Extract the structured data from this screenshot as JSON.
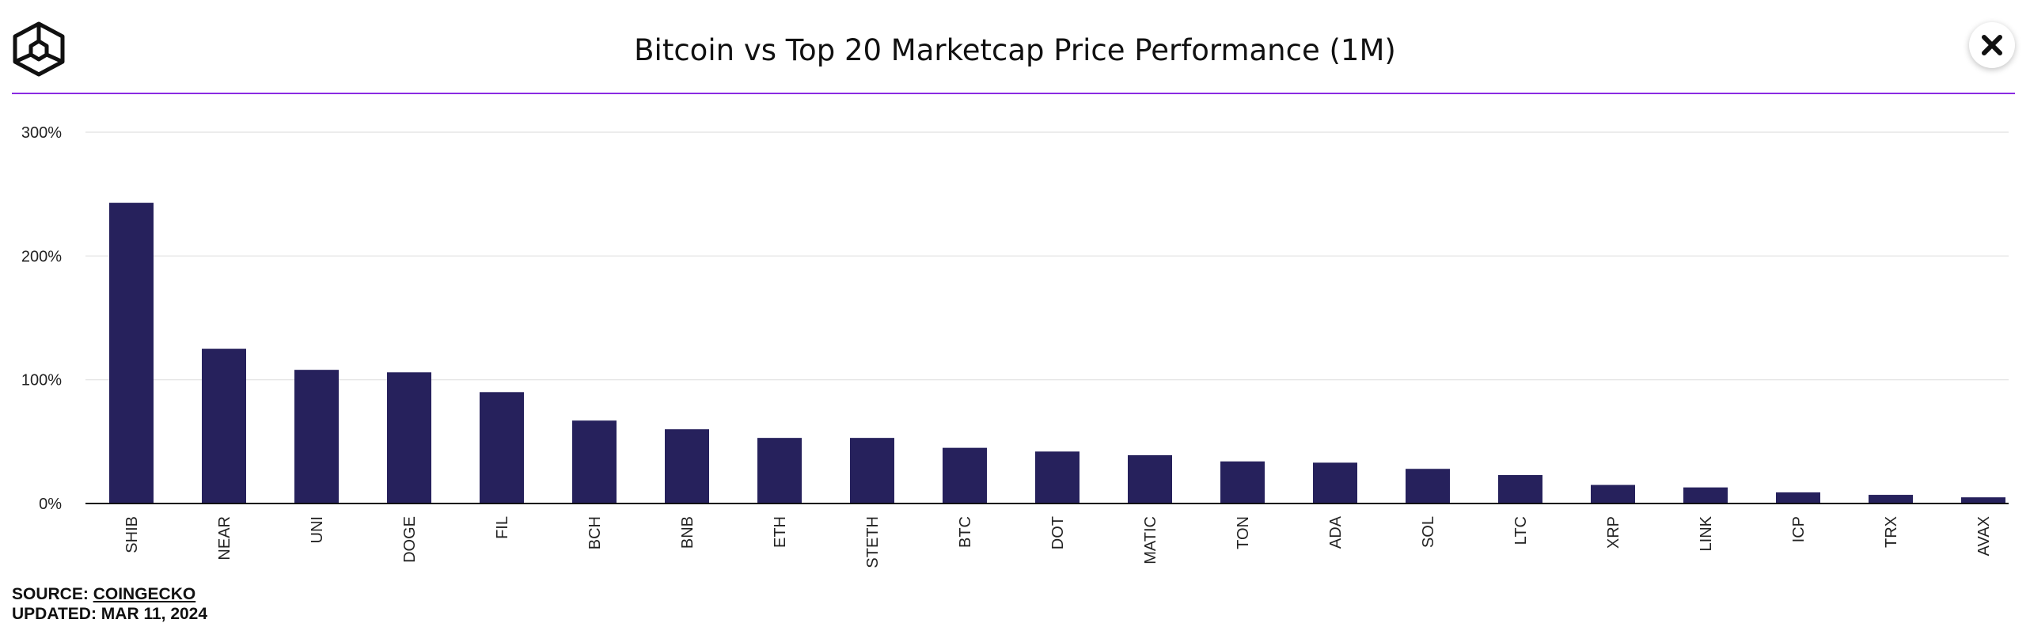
{
  "header": {
    "title": "Bitcoin vs Top 20 Marketcap Price Performance (1M)",
    "logo_icon": "cube-logo-icon",
    "close_icon": "close-icon"
  },
  "footer": {
    "source_label": "SOURCE:",
    "source_link": "COINGECKO",
    "updated_label": "UPDATED:",
    "updated_date": "MAR 11, 2024"
  },
  "colors": {
    "bar": "#26215c",
    "accent_rule": "#8a2be2",
    "grid": "#e6e6e6",
    "axis": "#111111"
  },
  "chart_data": {
    "type": "bar",
    "categories": [
      "SHIB",
      "NEAR",
      "UNI",
      "DOGE",
      "FIL",
      "BCH",
      "BNB",
      "ETH",
      "STETH",
      "BTC",
      "DOT",
      "MATIC",
      "TON",
      "ADA",
      "SOL",
      "LTC",
      "XRP",
      "LINK",
      "ICP",
      "TRX",
      "AVAX"
    ],
    "values": [
      243,
      125,
      108,
      106,
      90,
      67,
      60,
      53,
      53,
      45,
      42,
      39,
      34,
      33,
      28,
      23,
      15,
      13,
      9,
      7,
      5
    ],
    "yticks": [
      0,
      100,
      200,
      300
    ],
    "ytick_labels": [
      "0%",
      "100%",
      "200%",
      "300%"
    ],
    "ylim": [
      0,
      300
    ],
    "grid": true,
    "title": "Bitcoin vs Top 20 Marketcap Price Performance (1M)",
    "xlabel": "",
    "ylabel": ""
  }
}
